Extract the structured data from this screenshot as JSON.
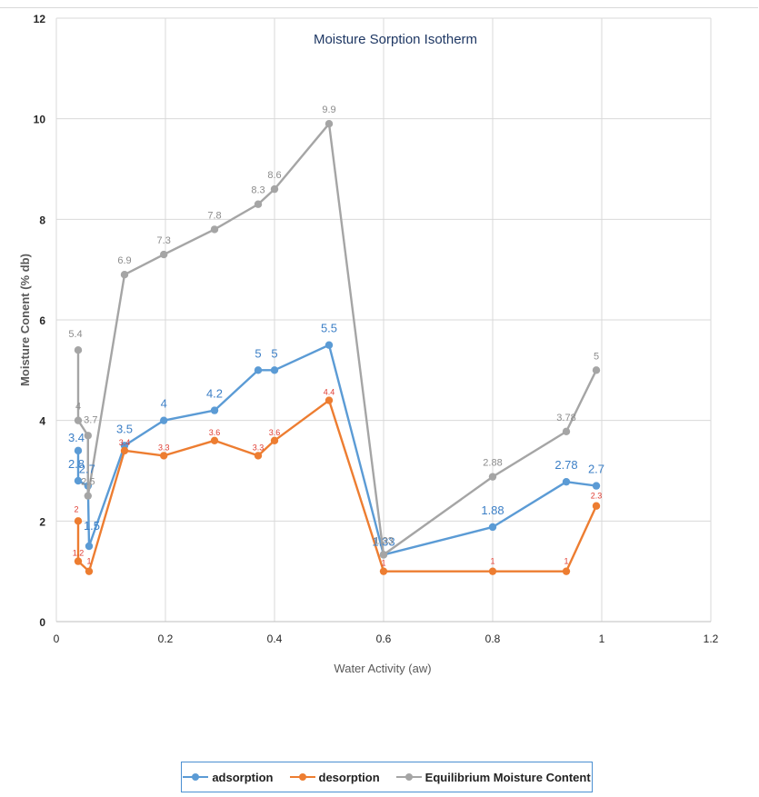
{
  "chart_data": {
    "type": "line",
    "title": "Moisture Sorption Isotherm",
    "xlabel": "Water Activity (aw)",
    "ylabel": "Moisture Conent (% db)",
    "xlim": [
      0,
      1.2
    ],
    "ylim": [
      0,
      12
    ],
    "x_ticks": [
      "0",
      "0.2",
      "0.4",
      "0.6",
      "0.8",
      "1",
      "1.2"
    ],
    "y_ticks": [
      "0",
      "2",
      "4",
      "6",
      "8",
      "10",
      "12"
    ],
    "grid": true,
    "legend_position": "bottom",
    "series": [
      {
        "name": "adsorption",
        "color": "#5b9bd5",
        "x": [
          0.04,
          0.04,
          0.058,
          0.06,
          0.125,
          0.197,
          0.29,
          0.37,
          0.4,
          0.5,
          0.6,
          0.8,
          0.935,
          0.99
        ],
        "y": [
          3.4,
          2.8,
          2.7,
          1.5,
          3.5,
          4,
          4.2,
          5,
          5,
          5.5,
          1.33,
          1.88,
          2.78,
          2.7
        ],
        "labels": [
          "3.4",
          "2.8",
          "2.7",
          "1.5",
          "3.5",
          "4",
          "4.2",
          "5",
          "5",
          "5.5",
          "1.33",
          "1.88",
          "2.78",
          "2.7"
        ]
      },
      {
        "name": "desorption",
        "color": "#ed7d31",
        "x": [
          0.04,
          0.04,
          0.06,
          0.125,
          0.197,
          0.29,
          0.37,
          0.4,
          0.5,
          0.6,
          0.8,
          0.935,
          0.99
        ],
        "y": [
          2,
          1.2,
          1,
          3.4,
          3.3,
          3.6,
          3.3,
          3.6,
          4.4,
          1,
          1,
          1,
          2.3
        ],
        "labels": [
          "2",
          "1.2",
          "1",
          "3.4",
          "3.3",
          "3.6",
          "3.3",
          "3.6",
          "4.4",
          "1",
          "1",
          "1",
          "2.3"
        ]
      },
      {
        "name": "Equilibrium Moisture Content",
        "color": "#a5a5a5",
        "x": [
          0.04,
          0.04,
          0.058,
          0.058,
          0.125,
          0.197,
          0.29,
          0.37,
          0.4,
          0.5,
          0.6,
          0.8,
          0.935,
          0.99
        ],
        "y": [
          5.4,
          4,
          3.7,
          2.5,
          6.9,
          7.3,
          7.8,
          8.3,
          8.6,
          9.9,
          1.33,
          2.88,
          3.78,
          5
        ],
        "labels": [
          "5.4",
          "4",
          "3.7",
          "2.5",
          "6.9",
          "7.3",
          "7.8",
          "8.3",
          "8.6",
          "9.9",
          "1.33",
          "2.88",
          "3.78",
          "5"
        ]
      }
    ]
  }
}
